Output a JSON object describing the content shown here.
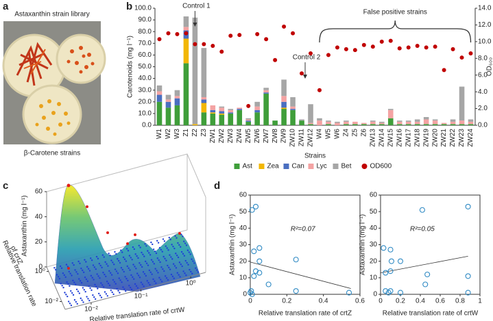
{
  "panel_labels": {
    "a": "a",
    "b": "b",
    "c": "c",
    "d": "d"
  },
  "panel_a": {
    "top_caption": "Astaxanthin strain library",
    "bottom_caption": "β-Carotene strains"
  },
  "chart_data": [
    {
      "type": "bar",
      "stacked": true,
      "categories": [
        "W1",
        "W2",
        "W3",
        "Z1",
        "Z2",
        "Z3",
        "ZW1",
        "ZW2",
        "ZW3",
        "ZW4",
        "ZW5",
        "ZW6",
        "ZW7",
        "ZW8",
        "ZW9",
        "ZW10",
        "ZW11",
        "ZW12",
        "W4",
        "W5",
        "W6",
        "Z4",
        "Z5",
        "Z6",
        "ZW13",
        "ZW14",
        "ZW15",
        "ZW16",
        "ZW17",
        "ZW18",
        "ZW19",
        "ZW20",
        "ZW21",
        "ZW22",
        "ZW23",
        "ZW24"
      ],
      "series": [
        {
          "name": "Ast",
          "color": "#3f9e3a",
          "values": [
            20,
            15,
            17,
            53,
            0,
            11,
            10,
            9,
            10,
            13,
            3,
            11,
            27,
            4,
            14,
            13,
            4,
            1,
            0,
            1,
            0,
            1,
            1,
            1,
            1,
            1,
            6,
            1,
            1,
            1,
            1,
            1,
            1,
            1,
            1,
            1
          ]
        },
        {
          "name": "Zea",
          "color": "#f2b705",
          "values": [
            0,
            0,
            0,
            21,
            1,
            8,
            1,
            1,
            0,
            0,
            0,
            0,
            0,
            0,
            1,
            0,
            0,
            0,
            0,
            0,
            0,
            0,
            0,
            0,
            0,
            0,
            0,
            0,
            0,
            0,
            0,
            0,
            0,
            0,
            0,
            0
          ]
        },
        {
          "name": "Can",
          "color": "#4a6fc0",
          "values": [
            6,
            5,
            6,
            7,
            0,
            3,
            2,
            2,
            1,
            1,
            1,
            2,
            1,
            0,
            5,
            1,
            0,
            0,
            0,
            0,
            0,
            0,
            0,
            0,
            0,
            0,
            0,
            0,
            0,
            0,
            0,
            0,
            0,
            0,
            0,
            0
          ]
        },
        {
          "name": "Lyc",
          "color": "#f4a3a3",
          "values": [
            3,
            2,
            2,
            3,
            0,
            2,
            4,
            3,
            2,
            1,
            1,
            3,
            2,
            0,
            5,
            2,
            0,
            1,
            4,
            2,
            2,
            2,
            2,
            1,
            2,
            1,
            7,
            2,
            2,
            2,
            4,
            3,
            1,
            2,
            3,
            2
          ]
        },
        {
          "name": "Bet",
          "color": "#a6a6a6",
          "values": [
            5,
            4,
            5,
            9,
            91,
            42,
            0,
            1,
            1,
            0,
            1,
            4,
            2,
            0,
            14,
            8,
            1,
            16,
            2,
            1,
            1,
            1,
            0,
            0,
            1,
            1,
            1,
            1,
            1,
            2,
            2,
            1,
            0,
            2,
            29,
            2
          ]
        },
        {
          "name": "OD600",
          "color": "#c00000",
          "axis": "y2",
          "values": [
            10.3,
            11.0,
            10.9,
            11.0,
            9.7,
            9.7,
            9.5,
            8.8,
            10.7,
            10.8,
            2.3,
            10.9,
            10.3,
            7.8,
            11.8,
            11.0,
            6.2,
            8.6,
            4.2,
            8.4,
            9.3,
            9.1,
            9.0,
            9.6,
            9.4,
            10.0,
            10.1,
            9.2,
            9.3,
            9.5,
            9.3,
            9.4,
            6.6,
            9.1,
            8.1,
            8.6
          ]
        }
      ],
      "ylim": [
        0,
        100
      ],
      "yticks": [
        {
          "value": 0,
          "label": "0.0"
        },
        {
          "value": 10,
          "label": "10.0"
        },
        {
          "value": 20,
          "label": "20.0"
        },
        {
          "value": 30,
          "label": "30.0"
        },
        {
          "value": 40,
          "label": "40.0"
        },
        {
          "value": 50,
          "label": "50.0"
        },
        {
          "value": 60,
          "label": "60.0"
        },
        {
          "value": 70,
          "label": "70.0"
        },
        {
          "value": 80,
          "label": "80.0"
        },
        {
          "value": 90,
          "label": "90.0"
        },
        {
          "value": 100,
          "label": "100.0"
        }
      ],
      "y2lim": [
        0,
        14
      ],
      "y2ticks": [
        {
          "value": 0,
          "label": "0.0"
        },
        {
          "value": 2,
          "label": "2.0"
        },
        {
          "value": 4,
          "label": "4.0"
        },
        {
          "value": 6,
          "label": "6.0"
        },
        {
          "value": 8,
          "label": "8.0"
        },
        {
          "value": 10,
          "label": "10.0"
        },
        {
          "value": 12,
          "label": "12.0"
        },
        {
          "value": 14,
          "label": "14.0"
        }
      ],
      "ylabel": "Carotenoids (mg l⁻¹)",
      "y2label": "OD₆₀₀",
      "xlabel": "Strains",
      "annotations": [
        "Control 1",
        "Control 2",
        "False positive strains"
      ],
      "legend": "bottom"
    },
    {
      "type": "surface",
      "zlabel": "Astaxanthin (mg l⁻¹)",
      "zlim": [
        0,
        60
      ],
      "zticks": [
        0,
        20,
        40,
        60
      ],
      "xlabel": "Relative translation rate of crtW",
      "xlim": [
        0.003,
        2
      ],
      "xscale": "log",
      "xticks": [
        {
          "value": 0.01,
          "label": "10⁻²"
        },
        {
          "value": 0.1,
          "label": "10⁻¹"
        },
        {
          "value": 1,
          "label": "10⁰"
        }
      ],
      "ylabel": [
        "Relative translation rate",
        "of crtZ"
      ],
      "ylim": [
        0.003,
        2
      ],
      "yscale": "log",
      "yticks": [
        {
          "value": 0.01,
          "label": "10⁻²"
        },
        {
          "value": 1,
          "label": "10⁰"
        }
      ]
    },
    {
      "type": "scatter",
      "color": "#2f8ac4",
      "x": [
        0.01,
        0.03,
        0.02,
        0.05,
        0.05,
        0.03,
        0.02,
        0.1,
        0.25,
        0.25,
        0.54,
        0,
        0.005,
        0.01,
        0.05
      ],
      "values": [
        51,
        53,
        26,
        28,
        20,
        14,
        11,
        6,
        21,
        2,
        1,
        1,
        2,
        0,
        13
      ],
      "xlim": [
        0,
        0.6
      ],
      "xticks": [
        0,
        0.2,
        0.4,
        0.6
      ],
      "ylim": [
        0,
        60
      ],
      "yticks": [
        0,
        10,
        20,
        30,
        40,
        50,
        60
      ],
      "xlabel": "Relative translation rate of crtZ",
      "ylabel": "Astaxanthin (mg l⁻¹)",
      "trendline": {
        "x": [
          0,
          0.55
        ],
        "y": [
          19.5,
          3.5
        ]
      },
      "annotation": "R²=0.07"
    },
    {
      "type": "scatter",
      "color": "#2f8ac4",
      "x": [
        0.88,
        0.42,
        0.03,
        0.1,
        0.2,
        0.11,
        0.1,
        0.05,
        0.47,
        0.88,
        0.45,
        0.05,
        0.08,
        0.1,
        0.2,
        0.88
      ],
      "values": [
        53,
        51,
        28,
        27,
        20,
        20,
        14,
        13,
        12,
        11,
        6,
        2,
        1,
        2,
        1,
        1
      ],
      "xlim": [
        0,
        1
      ],
      "xticks": [
        0,
        0.2,
        0.4,
        0.6,
        0.8,
        1
      ],
      "ylim": [
        0,
        60
      ],
      "yticks": [
        0,
        10,
        20,
        30,
        40,
        50,
        60
      ],
      "xlabel": "Relative translation rate of crtW",
      "ylabel": "Astaxanthin (mg l⁻¹)",
      "trendline": {
        "x": [
          0,
          0.88
        ],
        "y": [
          13,
          23
        ]
      },
      "annotation": "R²=0.05"
    }
  ]
}
